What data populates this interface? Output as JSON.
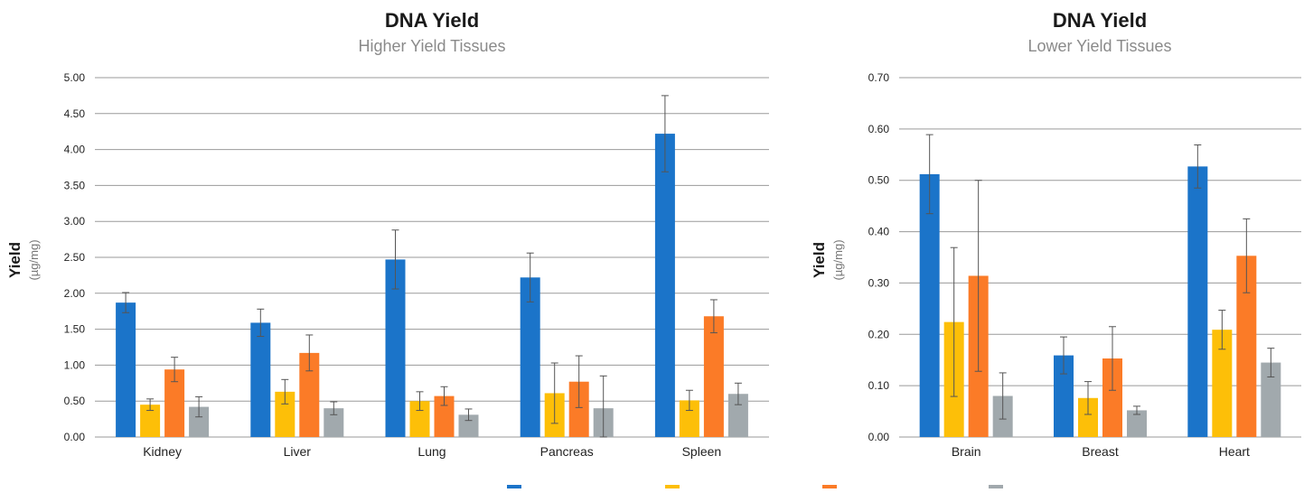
{
  "colors": {
    "series1": "#1b74c9",
    "series2": "#fdbf08",
    "series3": "#fb7b27",
    "series4": "#a1a9ad"
  },
  "chart_data": [
    {
      "type": "bar",
      "title": "DNA Yield",
      "subtitle": "Higher Yield Tissues",
      "ylabel": "Yield",
      "yunit": "(µg/mg)",
      "ylim": [
        0,
        5
      ],
      "yticks": [
        "0.00",
        "0.50",
        "1.00",
        "1.50",
        "2.00",
        "2.50",
        "3.00",
        "3.50",
        "4.00",
        "4.50",
        "5.00"
      ],
      "grid": true,
      "categories": [
        "Kidney",
        "Liver",
        "Lung",
        "Pancreas",
        "Spleen"
      ],
      "series": [
        {
          "values": [
            1.87,
            1.59,
            2.47,
            2.22,
            4.22
          ],
          "errors": [
            0.14,
            0.19,
            0.41,
            0.34,
            0.53
          ],
          "color": "#1b74c9"
        },
        {
          "values": [
            0.45,
            0.63,
            0.5,
            0.61,
            0.51
          ],
          "errors": [
            0.08,
            0.17,
            0.13,
            0.42,
            0.14
          ],
          "color": "#fdbf08"
        },
        {
          "values": [
            0.94,
            1.17,
            0.57,
            0.77,
            1.68
          ],
          "errors": [
            0.17,
            0.25,
            0.13,
            0.36,
            0.23
          ],
          "color": "#fb7b27"
        },
        {
          "values": [
            0.42,
            0.4,
            0.31,
            0.4,
            0.6
          ],
          "errors": [
            0.14,
            0.09,
            0.08,
            0.45,
            0.15
          ],
          "color": "#a1a9ad"
        }
      ]
    },
    {
      "type": "bar",
      "title": "DNA Yield",
      "subtitle": "Lower Yield Tissues",
      "ylabel": "Yield",
      "yunit": "(µg/mg)",
      "ylim": [
        0,
        0.7
      ],
      "yticks": [
        "0.00",
        "0.10",
        "0.20",
        "0.30",
        "0.40",
        "0.50",
        "0.60",
        "0.70"
      ],
      "grid": true,
      "categories": [
        "Brain",
        "Breast",
        "Heart"
      ],
      "series": [
        {
          "values": [
            0.512,
            0.159,
            0.527
          ],
          "errors": [
            0.077,
            0.036,
            0.042
          ],
          "color": "#1b74c9"
        },
        {
          "values": [
            0.224,
            0.076,
            0.209
          ],
          "errors": [
            0.145,
            0.032,
            0.038
          ],
          "color": "#fdbf08"
        },
        {
          "values": [
            0.314,
            0.153,
            0.353
          ],
          "errors": [
            0.186,
            0.062,
            0.072
          ],
          "color": "#fb7b27"
        },
        {
          "values": [
            0.08,
            0.052,
            0.145
          ],
          "errors": [
            0.045,
            0.008,
            0.028
          ],
          "color": "#a1a9ad"
        }
      ]
    }
  ],
  "legend": {
    "placement": "bottom-center",
    "entries": [
      {
        "color": "#1b74c9"
      },
      {
        "color": "#fdbf08"
      },
      {
        "color": "#fb7b27"
      },
      {
        "color": "#a1a9ad"
      }
    ]
  }
}
